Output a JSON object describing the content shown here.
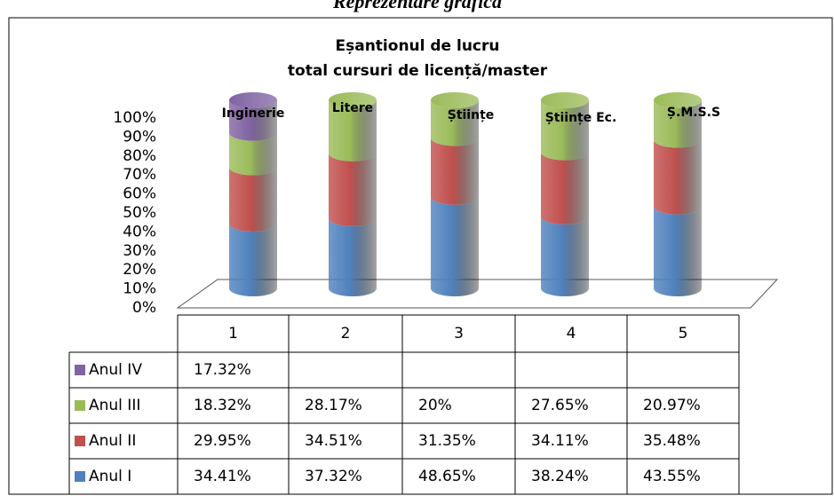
{
  "heading": "Reprezentare grafică",
  "chart_data": {
    "type": "stacked-cylinder",
    "title": "Eșantionul de lucru",
    "subtitle": "total cursuri de licență/master",
    "categories": [
      "1",
      "2",
      "3",
      "4",
      "5"
    ],
    "annotations": [
      "Inginerie",
      "Litere",
      "Științe",
      "Științe Ec.",
      "Ș.M.S.S"
    ],
    "series": [
      {
        "name": "Anul IV",
        "color": "#8064a2",
        "values": [
          17.32,
          null,
          null,
          null,
          null
        ],
        "value_labels": [
          "17.32%",
          null,
          null,
          null,
          null
        ]
      },
      {
        "name": "Anul III",
        "color": "#9bbb59",
        "values": [
          18.32,
          28.17,
          20,
          27.65,
          20.97
        ],
        "value_labels": [
          "18.32%",
          "28.17%",
          "20%",
          "27.65%",
          "20.97%"
        ]
      },
      {
        "name": "Anul II",
        "color": "#c0504d",
        "values": [
          29.95,
          34.51,
          31.35,
          34.11,
          35.48
        ],
        "value_labels": [
          "29.95%",
          "34.51%",
          "31.35%",
          "34.11%",
          "35.48%"
        ]
      },
      {
        "name": "Anul I",
        "color": "#4f81bd",
        "values": [
          34.41,
          37.32,
          48.65,
          38.24,
          43.55
        ],
        "value_labels": [
          "34.41%",
          "37.32%",
          "48.65%",
          "38.24%",
          "43.55%"
        ]
      }
    ],
    "ylim": [
      0,
      100
    ],
    "yticks": [
      {
        "value": 0,
        "label": "0%"
      },
      {
        "value": 10,
        "label": "10%"
      },
      {
        "value": 20,
        "label": "20%"
      },
      {
        "value": 30,
        "label": "30%"
      },
      {
        "value": 40,
        "label": "40%"
      },
      {
        "value": 50,
        "label": "50%"
      },
      {
        "value": 60,
        "label": "60%"
      },
      {
        "value": 70,
        "label": "70%"
      },
      {
        "value": 80,
        "label": "80%"
      },
      {
        "value": 90,
        "label": "90%"
      },
      {
        "value": 100,
        "label": "100%"
      }
    ]
  }
}
